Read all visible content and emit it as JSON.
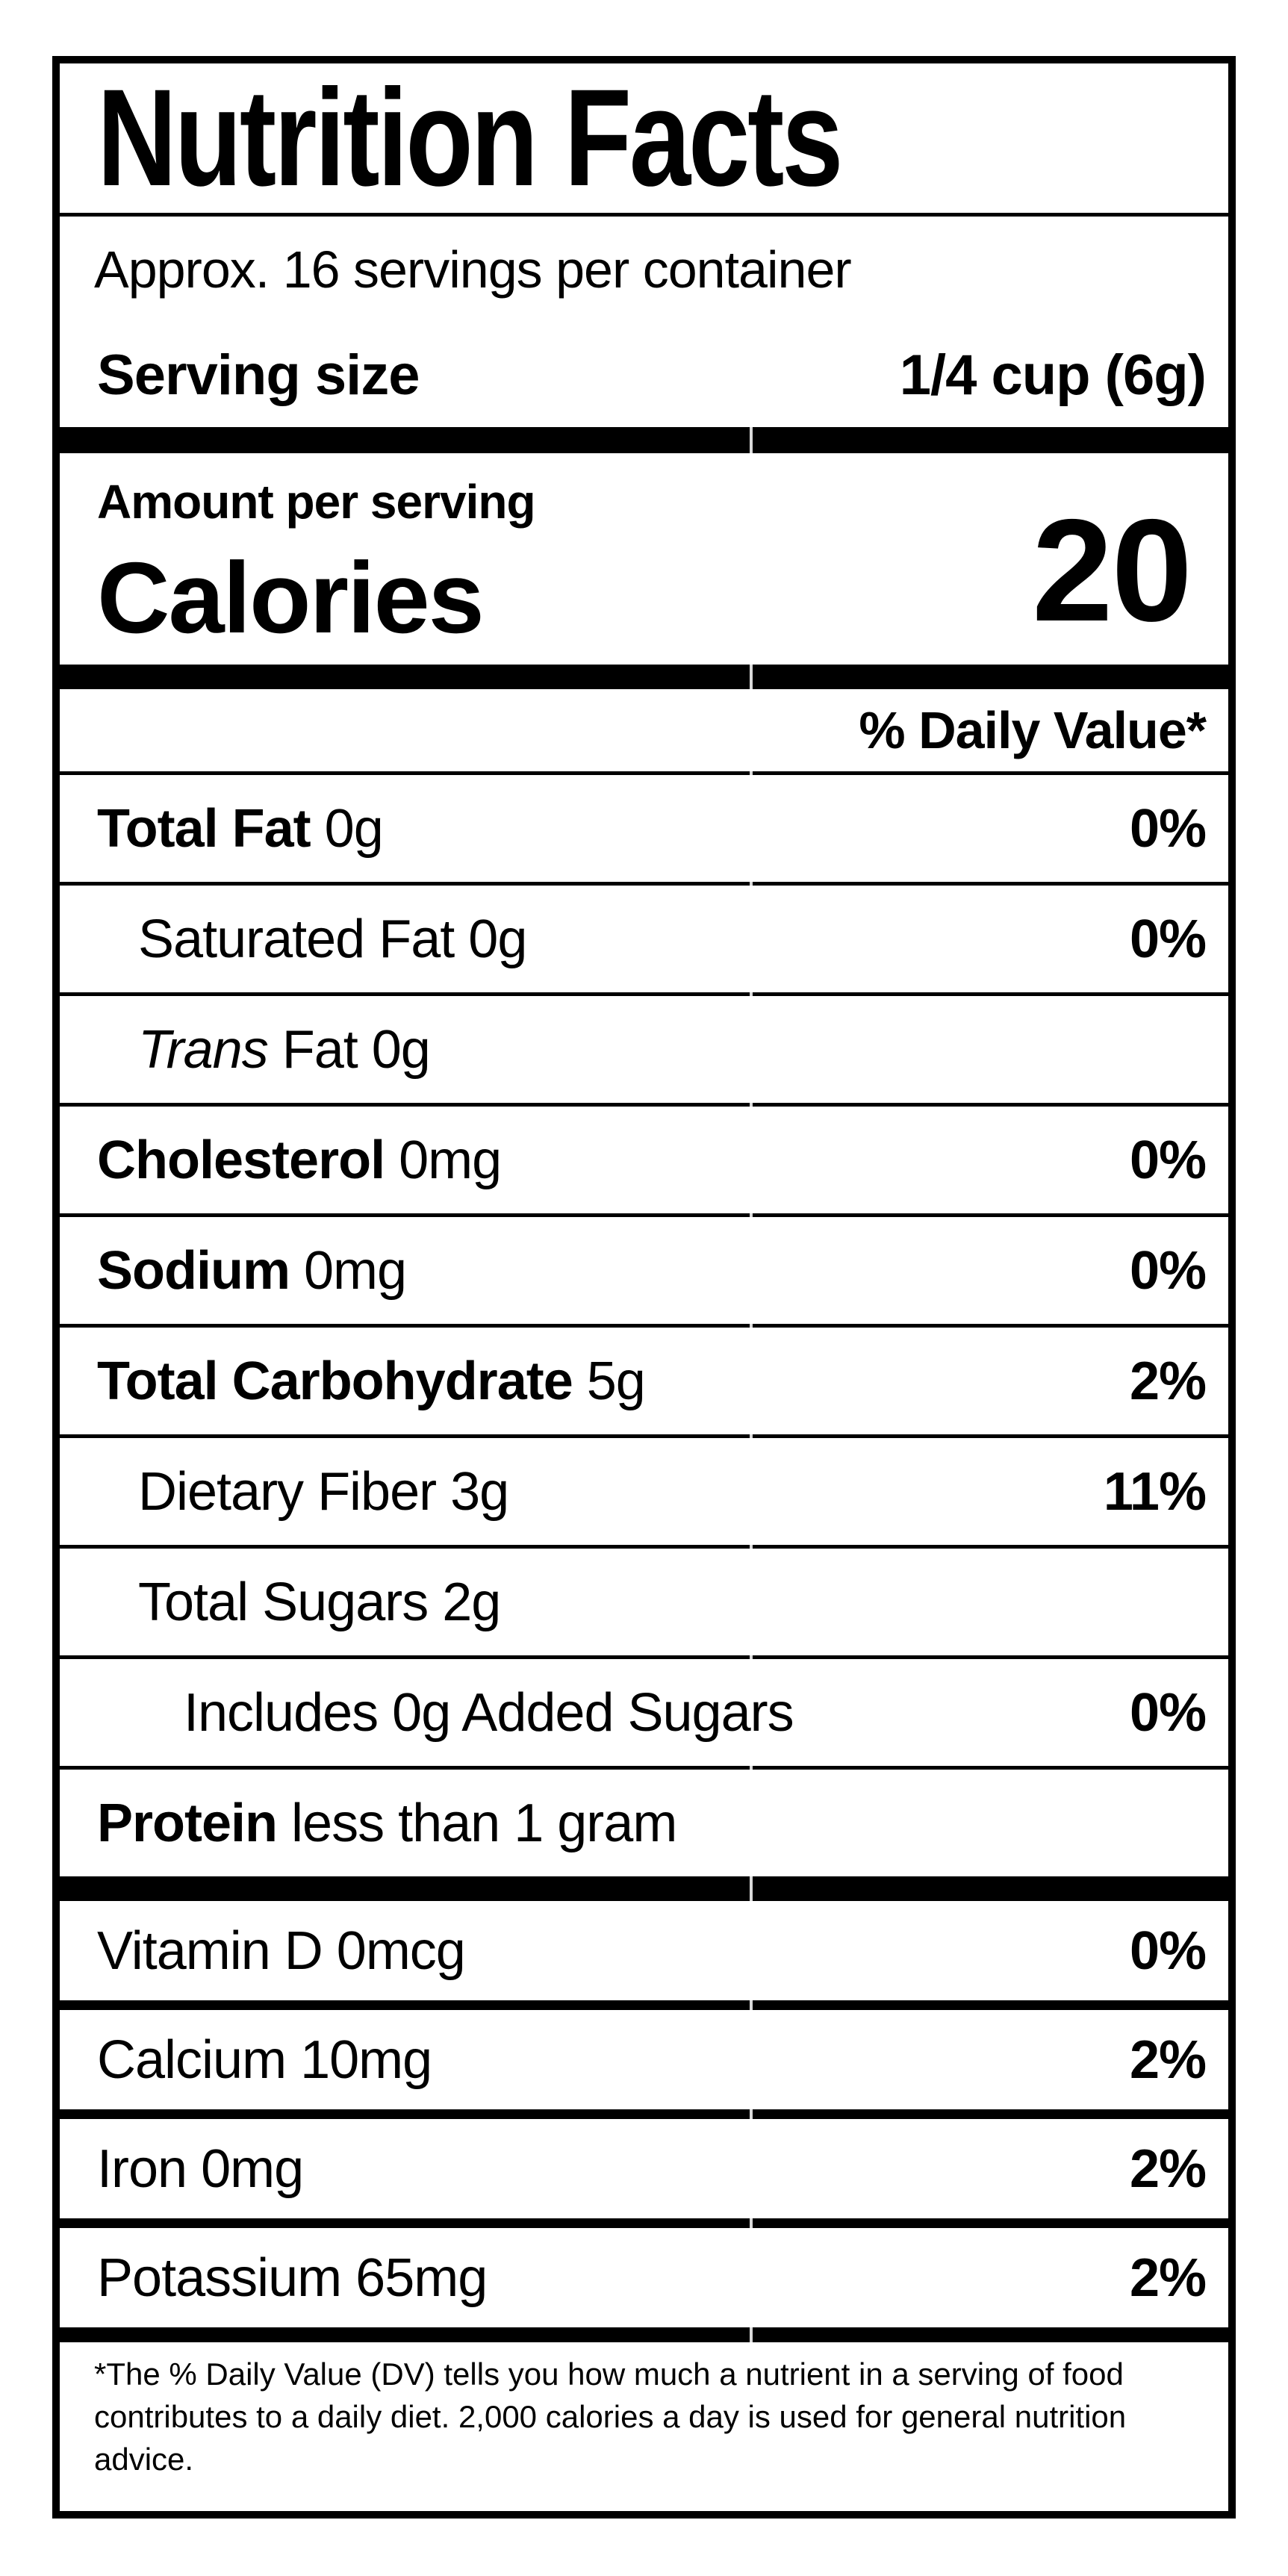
{
  "title": "Nutrition Facts",
  "servings_per_container": "Approx. 16 servings per container",
  "serving_size": {
    "label": "Serving size",
    "value": "1/4 cup (6g)"
  },
  "calories": {
    "amount_label": "Amount per serving",
    "word": "Calories",
    "value": "20"
  },
  "daily_value_header": "% Daily Value*",
  "nutrients": [
    {
      "name": "Total Fat",
      "amount": "0g",
      "dv": "0%",
      "style": "bold",
      "indent": 0
    },
    {
      "name": "Saturated Fat",
      "amount": "0g",
      "dv": "0%",
      "style": "regular",
      "indent": 1
    },
    {
      "name": "Trans",
      "amount": "Fat 0g",
      "dv": "",
      "style": "italic",
      "indent": 1
    },
    {
      "name": "Cholesterol",
      "amount": "0mg",
      "dv": "0%",
      "style": "bold",
      "indent": 0
    },
    {
      "name": "Sodium",
      "amount": "0mg",
      "dv": "0%",
      "style": "bold",
      "indent": 0
    },
    {
      "name": "Total Carbohydrate",
      "amount": "5g",
      "dv": "2%",
      "style": "bold",
      "indent": 0
    },
    {
      "name": "Dietary Fiber",
      "amount": "3g",
      "dv": "11%",
      "style": "regular",
      "indent": 1
    },
    {
      "name": "Total Sugars",
      "amount": "2g",
      "dv": "",
      "style": "regular",
      "indent": 1
    },
    {
      "name": "Includes 0g Added Sugars",
      "amount": "",
      "dv": "0%",
      "style": "regular",
      "indent": 2
    },
    {
      "name": "Protein",
      "amount": "less than 1 gram",
      "dv": "",
      "style": "bold",
      "indent": 0
    }
  ],
  "vitamins": [
    {
      "name": "Vitamin D",
      "amount": "0mcg",
      "dv": "0%"
    },
    {
      "name": "Calcium",
      "amount": "10mg",
      "dv": "2%"
    },
    {
      "name": "Iron",
      "amount": "0mg",
      "dv": "2%"
    },
    {
      "name": "Potassium",
      "amount": "65mg",
      "dv": "2%"
    }
  ],
  "footnote": "*The % Daily Value (DV) tells you how much a nutrient in a serving of food contributes to a daily diet. 2,000 calories a day is used for general nutrition advice.",
  "colors": {
    "text": "#000000",
    "background": "#ffffff",
    "divider_gap": "#d9d9d9"
  }
}
